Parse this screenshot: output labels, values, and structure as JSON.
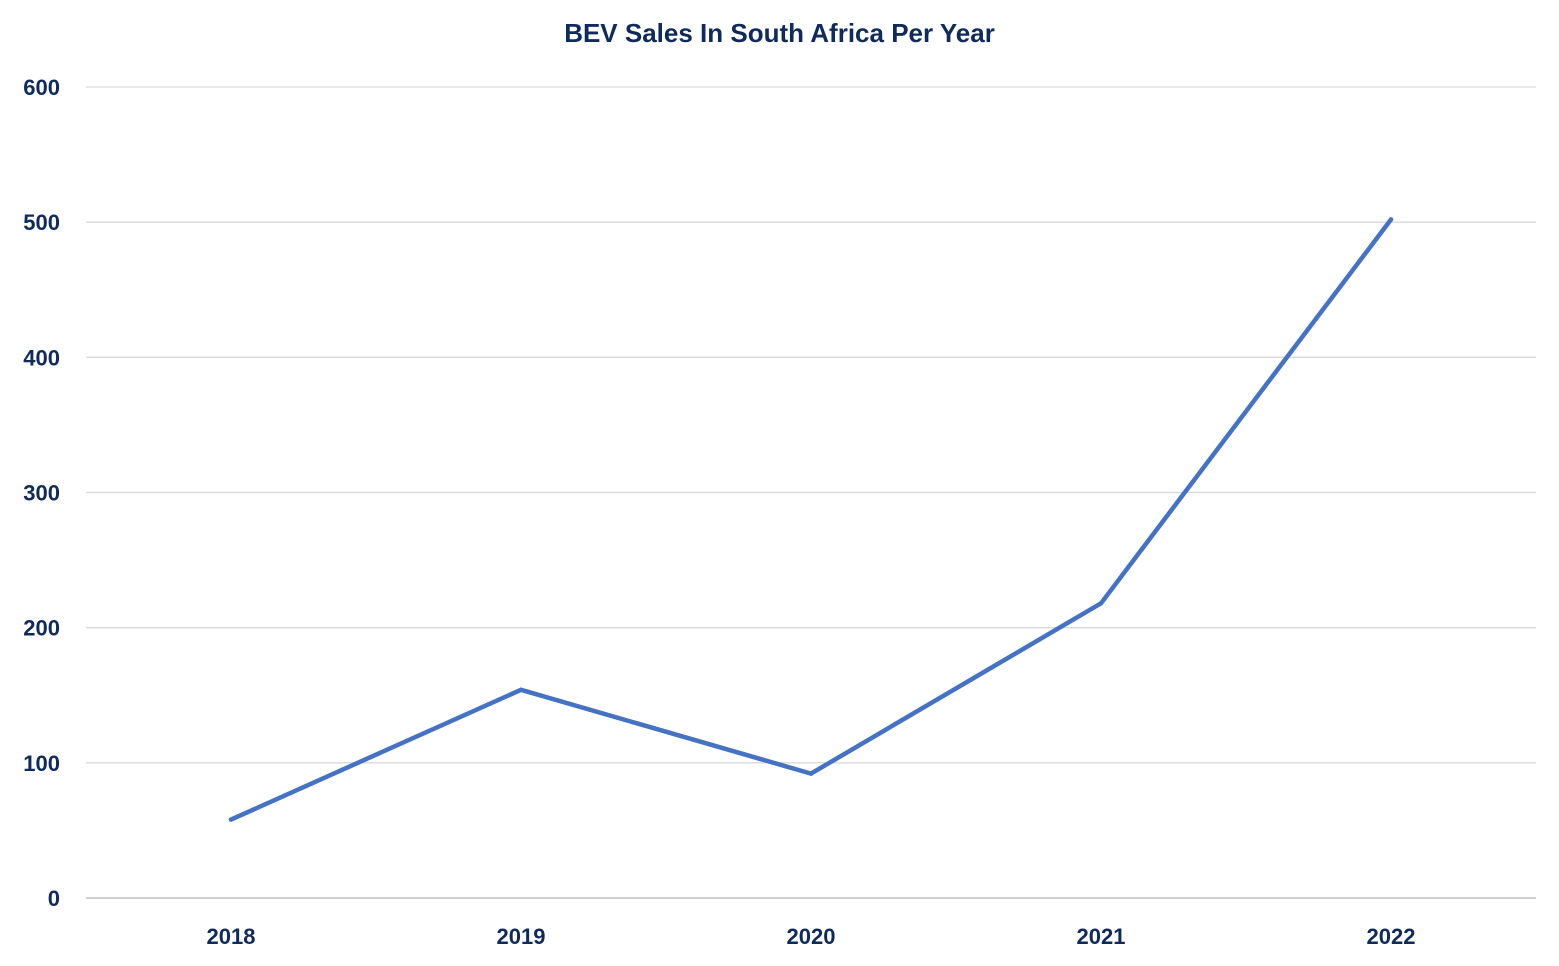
{
  "chart_data": {
    "type": "line",
    "title": "BEV Sales In South Africa Per Year",
    "xlabel": "",
    "ylabel": "",
    "categories": [
      "2018",
      "2019",
      "2020",
      "2021",
      "2022"
    ],
    "series": [
      {
        "values": [
          58,
          154,
          92,
          218,
          502
        ],
        "color": "#4472c4"
      }
    ],
    "ylim": [
      0,
      600
    ],
    "yticks": [
      0,
      100,
      200,
      300,
      400,
      500,
      600
    ],
    "ytick_labels": [
      "0",
      "100",
      "200",
      "300",
      "400",
      "500",
      "600"
    ],
    "grid": true,
    "legend": "none"
  },
  "colors": {
    "title": "#0f2a5c",
    "gridline": "#d9d9d9",
    "axis": "#bfbfbf",
    "line": "#4472c4"
  }
}
